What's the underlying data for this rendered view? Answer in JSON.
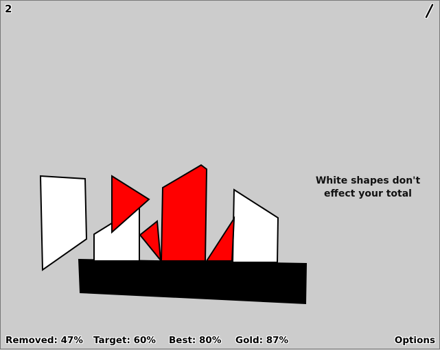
{
  "level": {
    "number": "2"
  },
  "hint": {
    "line1": "White shapes don't",
    "line2": "effect your total"
  },
  "stats": {
    "removed": "Removed: 47%",
    "target": "Target: 60%",
    "best": "Best: 80%",
    "gold": "Gold: 87%"
  },
  "options": {
    "label": "Options"
  },
  "colors": {
    "background": "#cccccc",
    "removable_shape": "#ff0000",
    "neutral_shape": "#ffffff",
    "platform": "#000000",
    "outline": "#000000"
  },
  "icons": {
    "draw_tool": "pencil-icon"
  }
}
